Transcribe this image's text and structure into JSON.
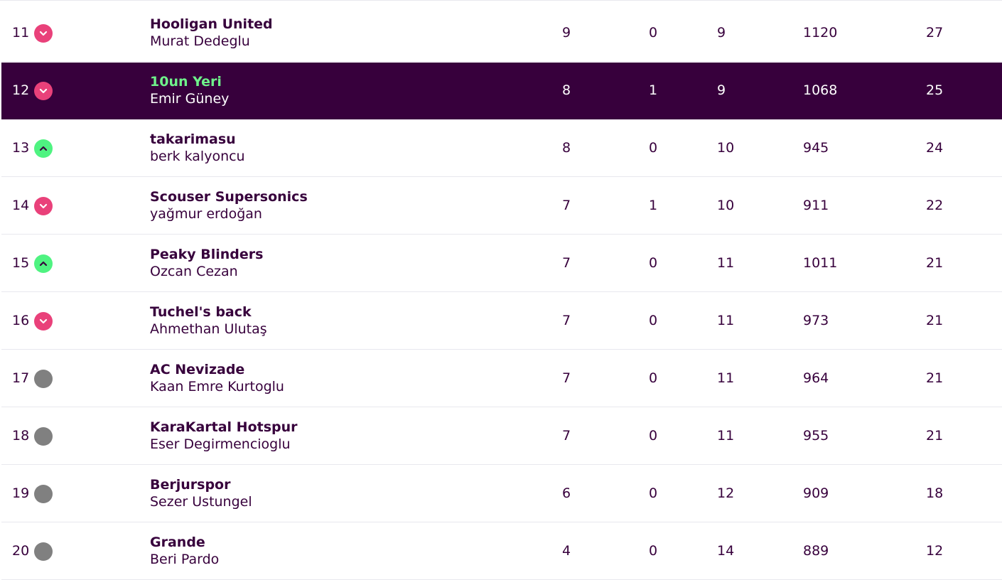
{
  "colors": {
    "brand_purple": "#37003c",
    "highlight_team_green": "#6ff28b",
    "move_down": "#e9417a",
    "move_up": "#4ff381",
    "move_same": "#808080"
  },
  "rows": [
    {
      "rank": "11",
      "movement": "down",
      "movement_icon": "chevron-down-icon",
      "team": "Hooligan United",
      "manager": "Murat Dedeglu",
      "w": "9",
      "d": "0",
      "l": "9",
      "pf": "1120",
      "pts": "27",
      "highlight": false
    },
    {
      "rank": "12",
      "movement": "down",
      "movement_icon": "chevron-down-icon",
      "team": "10un Yeri",
      "manager": "Emir Güney",
      "w": "8",
      "d": "1",
      "l": "9",
      "pf": "1068",
      "pts": "25",
      "highlight": true
    },
    {
      "rank": "13",
      "movement": "up",
      "movement_icon": "chevron-up-icon",
      "team": "takarimasu",
      "manager": "berk kalyoncu",
      "w": "8",
      "d": "0",
      "l": "10",
      "pf": "945",
      "pts": "24",
      "highlight": false
    },
    {
      "rank": "14",
      "movement": "down",
      "movement_icon": "chevron-down-icon",
      "team": "Scouser Supersonics",
      "manager": "yağmur erdoğan",
      "w": "7",
      "d": "1",
      "l": "10",
      "pf": "911",
      "pts": "22",
      "highlight": false
    },
    {
      "rank": "15",
      "movement": "up",
      "movement_icon": "chevron-up-icon",
      "team": "Peaky Blinders",
      "manager": "Ozcan Cezan",
      "w": "7",
      "d": "0",
      "l": "11",
      "pf": "1011",
      "pts": "21",
      "highlight": false
    },
    {
      "rank": "16",
      "movement": "down",
      "movement_icon": "chevron-down-icon",
      "team": "Tuchel's back",
      "manager": "Ahmethan Ulutaş",
      "w": "7",
      "d": "0",
      "l": "11",
      "pf": "973",
      "pts": "21",
      "highlight": false
    },
    {
      "rank": "17",
      "movement": "same",
      "movement_icon": "no-change-dot-icon",
      "team": "AC Nevizade",
      "manager": "Kaan Emre Kurtoglu",
      "w": "7",
      "d": "0",
      "l": "11",
      "pf": "964",
      "pts": "21",
      "highlight": false
    },
    {
      "rank": "18",
      "movement": "same",
      "movement_icon": "no-change-dot-icon",
      "team": "KaraKartal Hotspur",
      "manager": "Eser Degirmencioglu",
      "w": "7",
      "d": "0",
      "l": "11",
      "pf": "955",
      "pts": "21",
      "highlight": false
    },
    {
      "rank": "19",
      "movement": "same",
      "movement_icon": "no-change-dot-icon",
      "team": "Berjurspor",
      "manager": "Sezer Ustungel",
      "w": "6",
      "d": "0",
      "l": "12",
      "pf": "909",
      "pts": "18",
      "highlight": false
    },
    {
      "rank": "20",
      "movement": "same",
      "movement_icon": "no-change-dot-icon",
      "team": "Grande",
      "manager": "Beri Pardo",
      "w": "4",
      "d": "0",
      "l": "14",
      "pf": "889",
      "pts": "12",
      "highlight": false
    }
  ]
}
